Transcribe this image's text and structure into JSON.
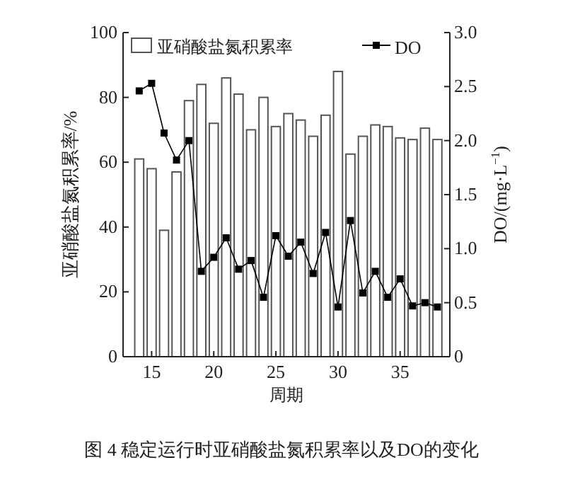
{
  "chart_data": {
    "type": "bar",
    "xlabel": "周期",
    "ylabel": "亚硝酸盐氮积累率/%",
    "y2label": "DO/(mg·L$^{−1}$)",
    "annotations": [
      "图 4 稳定运行时亚硝酸盐氮积累率以及DO的变化"
    ],
    "x": [
      14,
      15,
      16,
      17,
      18,
      19,
      20,
      21,
      22,
      23,
      24,
      25,
      26,
      27,
      28,
      29,
      30,
      31,
      32,
      33,
      34,
      35,
      36,
      37,
      38
    ],
    "xlim": [
      12.7,
      39
    ],
    "xticks": [
      15,
      20,
      25,
      30,
      35
    ],
    "ylim": [
      0,
      100
    ],
    "yticks": [
      0,
      20,
      40,
      60,
      80,
      100
    ],
    "y2lim": [
      0,
      3.0
    ],
    "y2ticks": [
      {
        "value": 0,
        "label": "0"
      },
      {
        "value": 0.5,
        "label": "0.5"
      },
      {
        "value": 1,
        "label": "1.0"
      },
      {
        "value": 1.5,
        "label": "1.5"
      },
      {
        "value": 2,
        "label": "2.0"
      },
      {
        "value": 2.5,
        "label": "2.5"
      },
      {
        "value": 3,
        "label": "3.0"
      }
    ],
    "legend": "top",
    "grid": false,
    "series": [
      {
        "name": "亚硝酸盐氮积累率",
        "color": "#ffffff",
        "values": [
          61,
          58,
          39,
          57,
          79,
          84,
          72,
          86,
          81,
          70,
          80,
          71,
          75,
          73,
          68,
          74.5,
          88,
          62.5,
          68,
          71.5,
          71,
          67.5,
          67,
          70.5,
          67
        ]
      },
      {
        "name": "DO",
        "type": "line",
        "axis": "y2",
        "color": "#000000",
        "marker": "square",
        "line_style": "solid",
        "values": [
          2.46,
          2.53,
          2.07,
          1.82,
          2.0,
          0.79,
          0.92,
          1.1,
          0.81,
          0.89,
          0.55,
          1.12,
          0.93,
          1.06,
          0.77,
          1.15,
          0.46,
          1.26,
          0.59,
          0.79,
          0.55,
          0.72,
          0.47,
          0.5,
          0.46
        ]
      }
    ]
  }
}
